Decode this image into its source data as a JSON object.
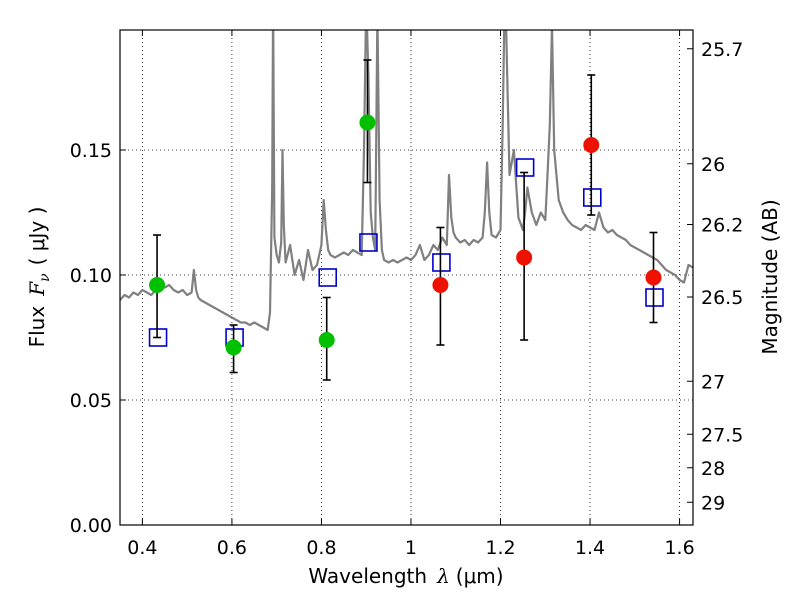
{
  "chart_data": {
    "type": "scatter",
    "xlabel": "Wavelength",
    "xlabel_symbol": "λ",
    "xlabel_unit": "(μm)",
    "ylabel": "Flux",
    "ylabel_symbol": "F",
    "ylabel_subscript": "ν",
    "ylabel_unit": "( μJy )",
    "ylabel_right": "Magnitude (AB)",
    "xlim": [
      0.35,
      1.63
    ],
    "ylim": [
      0.0,
      0.198
    ],
    "x_ticks": [
      0.4,
      0.6,
      0.8,
      1.0,
      1.2,
      1.4,
      1.6
    ],
    "x_tick_labels": [
      "0.4",
      "0.6",
      "0.8",
      "1",
      "1.2",
      "1.4",
      "1.6"
    ],
    "y_ticks": [
      0.0,
      0.05,
      0.1,
      0.15
    ],
    "y_tick_labels": [
      "0.00",
      "0.05",
      "0.10",
      "0.15"
    ],
    "right_ticks": [
      {
        "label": "25.7",
        "flux": 0.1905
      },
      {
        "label": "26",
        "flux": 0.1445
      },
      {
        "label": "26.2",
        "flux": 0.1202
      },
      {
        "label": "26.5",
        "flux": 0.0912
      },
      {
        "label": "27",
        "flux": 0.0575
      },
      {
        "label": "27.5",
        "flux": 0.0363
      },
      {
        "label": "28",
        "flux": 0.0229
      },
      {
        "label": "29",
        "flux": 0.0091
      }
    ],
    "grid": true,
    "series": [
      {
        "name": "model spectrum",
        "style": "line",
        "color": "#808080",
        "x": [
          0.35,
          0.36,
          0.37,
          0.38,
          0.39,
          0.4,
          0.41,
          0.42,
          0.43,
          0.44,
          0.45,
          0.46,
          0.47,
          0.48,
          0.49,
          0.5,
          0.51,
          0.515,
          0.52,
          0.525,
          0.53,
          0.54,
          0.55,
          0.56,
          0.57,
          0.58,
          0.59,
          0.6,
          0.61,
          0.62,
          0.63,
          0.64,
          0.65,
          0.66,
          0.67,
          0.68,
          0.685,
          0.69,
          0.692,
          0.695,
          0.7,
          0.705,
          0.71,
          0.713,
          0.716,
          0.72,
          0.73,
          0.74,
          0.75,
          0.76,
          0.77,
          0.78,
          0.79,
          0.8,
          0.805,
          0.81,
          0.815,
          0.82,
          0.83,
          0.84,
          0.85,
          0.86,
          0.87,
          0.88,
          0.89,
          0.895,
          0.9,
          0.905,
          0.91,
          0.915,
          0.92,
          0.925,
          0.93,
          0.935,
          0.94,
          0.95,
          0.96,
          0.97,
          0.98,
          0.99,
          1.0,
          1.01,
          1.02,
          1.03,
          1.04,
          1.05,
          1.06,
          1.07,
          1.08,
          1.085,
          1.09,
          1.095,
          1.1,
          1.11,
          1.12,
          1.13,
          1.14,
          1.15,
          1.16,
          1.165,
          1.17,
          1.175,
          1.18,
          1.19,
          1.2,
          1.205,
          1.21,
          1.215,
          1.22,
          1.23,
          1.24,
          1.25,
          1.255,
          1.26,
          1.27,
          1.28,
          1.29,
          1.3,
          1.305,
          1.31,
          1.315,
          1.32,
          1.33,
          1.34,
          1.35,
          1.36,
          1.37,
          1.38,
          1.39,
          1.4,
          1.41,
          1.42,
          1.43,
          1.44,
          1.45,
          1.46,
          1.47,
          1.48,
          1.49,
          1.5,
          1.51,
          1.52,
          1.53,
          1.54,
          1.55,
          1.56,
          1.57,
          1.58,
          1.59,
          1.6,
          1.61,
          1.62,
          1.63
        ],
        "values": [
          0.09,
          0.092,
          0.091,
          0.093,
          0.092,
          0.094,
          0.093,
          0.092,
          0.094,
          0.096,
          0.095,
          0.096,
          0.094,
          0.093,
          0.094,
          0.092,
          0.093,
          0.102,
          0.094,
          0.091,
          0.09,
          0.089,
          0.088,
          0.087,
          0.086,
          0.085,
          0.084,
          0.083,
          0.082,
          0.081,
          0.081,
          0.08,
          0.081,
          0.08,
          0.079,
          0.078,
          0.085,
          0.135,
          0.21,
          0.115,
          0.108,
          0.105,
          0.113,
          0.15,
          0.12,
          0.105,
          0.112,
          0.1,
          0.106,
          0.098,
          0.11,
          0.102,
          0.104,
          0.112,
          0.13,
          0.118,
          0.11,
          0.108,
          0.107,
          0.108,
          0.109,
          0.108,
          0.11,
          0.109,
          0.108,
          0.15,
          0.21,
          0.18,
          0.125,
          0.115,
          0.11,
          0.205,
          0.13,
          0.11,
          0.106,
          0.105,
          0.106,
          0.105,
          0.106,
          0.107,
          0.106,
          0.108,
          0.112,
          0.106,
          0.108,
          0.112,
          0.11,
          0.115,
          0.112,
          0.14,
          0.123,
          0.117,
          0.115,
          0.113,
          0.114,
          0.112,
          0.114,
          0.113,
          0.115,
          0.125,
          0.145,
          0.125,
          0.116,
          0.115,
          0.118,
          0.16,
          0.22,
          0.18,
          0.14,
          0.15,
          0.123,
          0.118,
          0.125,
          0.135,
          0.125,
          0.12,
          0.125,
          0.122,
          0.14,
          0.16,
          0.2,
          0.15,
          0.13,
          0.125,
          0.122,
          0.12,
          0.119,
          0.118,
          0.12,
          0.119,
          0.118,
          0.125,
          0.119,
          0.117,
          0.118,
          0.116,
          0.115,
          0.114,
          0.112,
          0.111,
          0.11,
          0.109,
          0.108,
          0.107,
          0.106,
          0.104,
          0.102,
          0.101,
          0.1,
          0.098,
          0.097,
          0.104,
          0.103
        ]
      },
      {
        "name": "blue squares",
        "style": "square",
        "color": "#0000cc",
        "x": [
          0.435,
          0.606,
          0.814,
          0.905,
          1.068,
          1.255,
          1.405,
          1.544
        ],
        "values": [
          0.075,
          0.075,
          0.099,
          0.113,
          0.105,
          0.143,
          0.131,
          0.091
        ]
      },
      {
        "name": "green points",
        "style": "circle",
        "color": "#00c000",
        "x": [
          0.435,
          0.606,
          0.814,
          0.905
        ],
        "values": [
          0.096,
          0.071,
          0.074,
          0.161
        ],
        "err_low": [
          0.021,
          0.01,
          0.016,
          0.024
        ],
        "err_high": [
          0.02,
          0.009,
          0.017,
          0.025
        ]
      },
      {
        "name": "red points",
        "style": "circle",
        "color": "#ee1100",
        "x": [
          1.068,
          1.255,
          1.405,
          1.544
        ],
        "values": [
          0.096,
          0.107,
          0.152,
          0.099
        ],
        "err_low": [
          0.024,
          0.033,
          0.028,
          0.018
        ],
        "err_high": [
          0.023,
          0.034,
          0.028,
          0.018
        ]
      }
    ]
  }
}
